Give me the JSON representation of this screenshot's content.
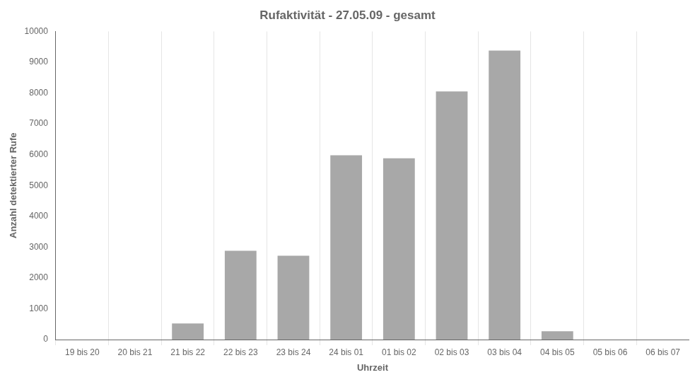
{
  "chart_data": {
    "type": "bar",
    "title": "Rufaktivität - 27.05.09 - gesamt",
    "categories": [
      "19 bis 20",
      "20 bis 21",
      "21 bis 22",
      "22 bis 23",
      "23 bis 24",
      "24 bis 01",
      "01 bis 02",
      "02 bis 03",
      "03 bis 04",
      "04 bis 05",
      "05 bis 06",
      "06 bis 07"
    ],
    "values": [
      0,
      0,
      520,
      2880,
      2720,
      5980,
      5880,
      8050,
      9380,
      270,
      0,
      0
    ],
    "color": "#a8a8a8",
    "xlabel": "Uhrzeit",
    "ylabel": "Anzahl detektierter Rufe",
    "ylim": [
      0,
      10000
    ],
    "yticks": [
      0,
      1000,
      2000,
      3000,
      4000,
      5000,
      6000,
      7000,
      8000,
      9000,
      10000
    ],
    "grid": "x"
  }
}
